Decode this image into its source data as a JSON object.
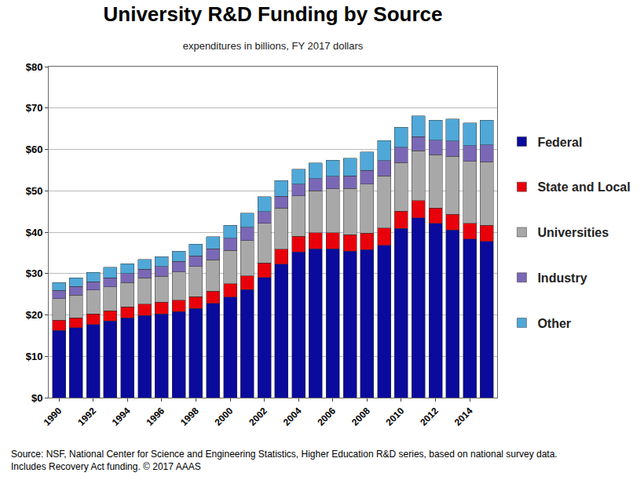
{
  "chart_data": {
    "type": "bar",
    "title": "University R&D Funding by Source",
    "subtitle": "expenditures in billions, FY 2017 dollars",
    "annotations": [
      "Source: NSF, National Center for Science and Engineering Statistics, Higher Education R&D series, based on national survey data.",
      "Includes Recovery Act funding. © 2017 AAAS"
    ],
    "categories": [
      "1990",
      null,
      "1992",
      null,
      "1994",
      null,
      "1996",
      null,
      "1998",
      null,
      "2000",
      null,
      "2002",
      null,
      "2004",
      null,
      "2006",
      null,
      "2008",
      null,
      "2010",
      null,
      "2012",
      null,
      "2014",
      null
    ],
    "series": [
      {
        "name": "Federal",
        "color": "#0a0a9c",
        "values": [
          16.3,
          16.9,
          17.7,
          18.5,
          19.3,
          19.9,
          20.2,
          20.8,
          21.6,
          22.8,
          24.3,
          26.1,
          29.1,
          32.3,
          35.2,
          36.0,
          36.0,
          35.4,
          35.8,
          36.8,
          40.9,
          43.5,
          42.1,
          40.5,
          38.3,
          37.8
        ]
      },
      {
        "name": "State and Local",
        "color": "#e8000b",
        "values": [
          2.4,
          2.4,
          2.5,
          2.5,
          2.6,
          2.7,
          2.9,
          2.8,
          2.8,
          2.9,
          3.2,
          3.3,
          3.5,
          3.6,
          3.8,
          3.9,
          3.9,
          4.0,
          4.0,
          4.2,
          4.2,
          4.1,
          3.7,
          3.8,
          3.8,
          3.9
        ]
      },
      {
        "name": "Universities",
        "color": "#a8a8a8",
        "values": [
          5.2,
          5.5,
          5.8,
          5.8,
          5.9,
          6.4,
          6.2,
          6.8,
          7.3,
          7.6,
          8.1,
          8.6,
          9.5,
          9.9,
          9.8,
          10.1,
          10.6,
          11.2,
          11.8,
          12.6,
          11.7,
          12.1,
          12.9,
          14.0,
          15.0,
          15.3
        ]
      },
      {
        "name": "Industry",
        "color": "#7a68b6",
        "values": [
          2.0,
          2.1,
          2.0,
          2.2,
          2.2,
          2.0,
          2.4,
          2.5,
          2.6,
          2.7,
          2.9,
          3.2,
          2.9,
          2.9,
          2.8,
          2.9,
          3.0,
          3.0,
          3.3,
          3.7,
          3.7,
          3.4,
          3.5,
          3.7,
          3.8,
          4.1
        ]
      },
      {
        "name": "Other",
        "color": "#4fa8d8",
        "values": [
          1.9,
          2.1,
          2.3,
          2.5,
          2.4,
          2.4,
          2.4,
          2.5,
          2.8,
          2.9,
          3.2,
          3.4,
          3.6,
          3.8,
          3.6,
          3.8,
          3.9,
          4.3,
          4.5,
          4.8,
          4.9,
          5.0,
          4.9,
          5.3,
          5.5,
          6.0
        ]
      }
    ],
    "ylim": [
      0,
      80
    ],
    "yticks": [
      {
        "value": 0,
        "label": "$0"
      },
      {
        "value": 10,
        "label": "$10"
      },
      {
        "value": 20,
        "label": "$20"
      },
      {
        "value": 30,
        "label": "$30"
      },
      {
        "value": 40,
        "label": "$40"
      },
      {
        "value": 50,
        "label": "$50"
      },
      {
        "value": 60,
        "label": "$60"
      },
      {
        "value": 70,
        "label": "$70"
      },
      {
        "value": 80,
        "label": "$80"
      }
    ],
    "stacked": true,
    "grid": true,
    "legend": "right"
  }
}
